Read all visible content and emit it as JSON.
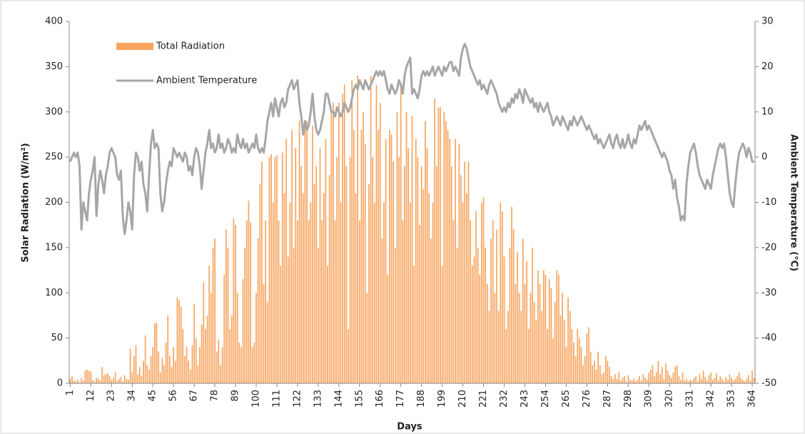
{
  "chart_data": {
    "type": "bar_line",
    "x_label": "Days",
    "y_label": "Solar Radiation (W/m²)",
    "y2_label": "Ambient Temperature (°C)",
    "ylim": [
      0,
      400
    ],
    "yticks": [
      0,
      50,
      100,
      150,
      200,
      250,
      300,
      350,
      400
    ],
    "y2lim": [
      -50,
      30
    ],
    "y2ticks": [
      -50,
      -40,
      -30,
      -20,
      -10,
      0,
      10,
      20,
      30
    ],
    "legend": "upper left",
    "categories": [
      "1",
      null,
      null,
      null,
      null,
      null,
      null,
      null,
      null,
      null,
      null,
      "12",
      null,
      null,
      null,
      null,
      null,
      null,
      null,
      null,
      null,
      null,
      "23",
      null,
      null,
      null,
      null,
      null,
      null,
      null,
      null,
      null,
      null,
      "34",
      null,
      null,
      null,
      null,
      null,
      null,
      null,
      null,
      null,
      null,
      "45",
      null,
      null,
      null,
      null,
      null,
      null,
      null,
      null,
      null,
      null,
      "56",
      null,
      null,
      null,
      null,
      null,
      null,
      null,
      null,
      null,
      null,
      "67",
      null,
      null,
      null,
      null,
      null,
      null,
      null,
      null,
      null,
      null,
      "78",
      null,
      null,
      null,
      null,
      null,
      null,
      null,
      null,
      null,
      null,
      "89",
      null,
      null,
      null,
      null,
      null,
      null,
      null,
      null,
      null,
      null,
      "100",
      null,
      null,
      null,
      null,
      null,
      null,
      null,
      null,
      null,
      null,
      "111",
      null,
      null,
      null,
      null,
      null,
      null,
      null,
      null,
      null,
      null,
      "122",
      null,
      null,
      null,
      null,
      null,
      null,
      null,
      null,
      null,
      null,
      "133",
      null,
      null,
      null,
      null,
      null,
      null,
      null,
      null,
      null,
      null,
      "144",
      null,
      null,
      null,
      null,
      null,
      null,
      null,
      null,
      null,
      null,
      "155",
      null,
      null,
      null,
      null,
      null,
      null,
      null,
      null,
      null,
      null,
      "166",
      null,
      null,
      null,
      null,
      null,
      null,
      null,
      null,
      null,
      null,
      "177",
      null,
      null,
      null,
      null,
      null,
      null,
      null,
      null,
      null,
      null,
      "188",
      null,
      null,
      null,
      null,
      null,
      null,
      null,
      null,
      null,
      null,
      "199",
      null,
      null,
      null,
      null,
      null,
      null,
      null,
      null,
      null,
      null,
      "210",
      null,
      null,
      null,
      null,
      null,
      null,
      null,
      null,
      null,
      null,
      "221",
      null,
      null,
      null,
      null,
      null,
      null,
      null,
      null,
      null,
      null,
      "232",
      null,
      null,
      null,
      null,
      null,
      null,
      null,
      null,
      null,
      null,
      "243",
      null,
      null,
      null,
      null,
      null,
      null,
      null,
      null,
      null,
      null,
      "254",
      null,
      null,
      null,
      null,
      null,
      null,
      null,
      null,
      null,
      null,
      "265",
      null,
      null,
      null,
      null,
      null,
      null,
      null,
      null,
      null,
      null,
      "276",
      null,
      null,
      null,
      null,
      null,
      null,
      null,
      null,
      null,
      null,
      "287",
      null,
      null,
      null,
      null,
      null,
      null,
      null,
      null,
      null,
      null,
      "298",
      null,
      null,
      null,
      null,
      null,
      null,
      null,
      null,
      null,
      null,
      "309",
      null,
      null,
      null,
      null,
      null,
      null,
      null,
      null,
      null,
      null,
      "320",
      null,
      null,
      null,
      null,
      null,
      null,
      null,
      null,
      null,
      null,
      "331",
      null,
      null,
      null,
      null,
      null,
      null,
      null,
      null,
      null,
      null,
      "342",
      null,
      null,
      null,
      null,
      null,
      null,
      null,
      null,
      null,
      null,
      "353",
      null,
      null,
      null,
      null,
      null,
      null,
      null,
      null,
      null,
      null,
      "364",
      null
    ],
    "series": [
      {
        "name": "Total Radiation",
        "type": "bar",
        "color": "#f7a35c",
        "values": [
          5,
          8,
          3,
          2,
          4,
          1,
          6,
          3,
          14,
          15,
          14,
          13,
          4,
          2,
          6,
          5,
          3,
          18,
          9,
          10,
          11,
          8,
          4,
          6,
          12,
          3,
          5,
          7,
          2,
          9,
          5,
          4,
          38,
          12,
          30,
          42,
          10,
          18,
          8,
          25,
          53,
          20,
          15,
          30,
          40,
          66,
          67,
          35,
          12,
          28,
          20,
          45,
          75,
          30,
          18,
          40,
          25,
          95,
          92,
          85,
          60,
          30,
          40,
          25,
          15,
          42,
          88,
          50,
          20,
          40,
          65,
          112,
          60,
          75,
          130,
          100,
          150,
          160,
          35,
          48,
          20,
          40,
          120,
          170,
          150,
          60,
          75,
          182,
          175,
          100,
          45,
          40,
          115,
          150,
          180,
          202,
          178,
          40,
          45,
          100,
          160,
          220,
          245,
          110,
          180,
          90,
          250,
          253,
          200,
          250,
          252,
          180,
          130,
          255,
          210,
          270,
          140,
          200,
          280,
          150,
          260,
          180,
          290,
          240,
          210,
          285,
          290,
          180,
          200,
          285,
          220,
          240,
          150,
          260,
          180,
          210,
          270,
          130,
          230,
          300,
          310,
          180,
          250,
          310,
          200,
          320,
          330,
          240,
          60,
          250,
          335,
          280,
          210,
          340,
          180,
          280,
          300,
          265,
          100,
          220,
          340,
          250,
          200,
          330,
          280,
          310,
          160,
          200,
          270,
          120,
          280,
          275,
          245,
          150,
          300,
          250,
          330,
          180,
          240,
          300,
          260,
          200,
          295,
          130,
          270,
          250,
          175,
          240,
          215,
          290,
          260,
          210,
          160,
          200,
          315,
          240,
          305,
          305,
          130,
          300,
          290,
          280,
          270,
          240,
          180,
          270,
          150,
          265,
          230,
          200,
          245,
          210,
          245,
          180,
          130,
          140,
          190,
          150,
          120,
          200,
          205,
          150,
          110,
          80,
          160,
          180,
          100,
          170,
          80,
          200,
          190,
          140,
          60,
          80,
          150,
          195,
          170,
          110,
          145,
          100,
          80,
          160,
          110,
          135,
          60,
          100,
          150,
          90,
          70,
          125,
          110,
          80,
          125,
          120,
          60,
          115,
          105,
          50,
          90,
          125,
          120,
          75,
          100,
          70,
          40,
          95,
          80,
          60,
          45,
          30,
          60,
          50,
          40,
          20,
          30,
          55,
          62,
          35,
          20,
          25,
          15,
          35,
          20,
          10,
          12,
          30,
          25,
          18,
          8,
          5,
          10,
          5,
          12,
          3,
          6,
          8,
          2,
          9,
          4,
          3,
          5,
          2,
          4,
          8,
          3,
          10,
          6,
          4,
          12,
          15,
          20,
          8,
          12,
          25,
          10,
          18,
          5,
          22,
          14,
          9,
          6,
          12,
          18,
          20,
          8,
          4,
          12,
          3,
          5,
          2,
          4,
          3,
          6,
          8,
          2,
          10,
          5,
          14,
          7,
          3,
          9,
          12,
          4,
          6,
          11,
          3,
          8,
          5,
          2,
          7,
          4,
          10,
          6,
          3,
          5,
          8,
          12,
          6,
          4,
          2,
          5,
          9,
          3,
          14,
          6
        ]
      },
      {
        "name": "Ambient Temperature",
        "type": "line",
        "axis": "y2",
        "color": "#a6a6a6",
        "values": [
          -1,
          0,
          1,
          0,
          1,
          -2,
          -16,
          -10,
          -12,
          -14,
          -8,
          -5,
          -3,
          0,
          -13,
          -6,
          -3,
          -5,
          -8,
          -4,
          -2,
          1,
          2,
          1,
          0,
          -4,
          -5,
          -3,
          -13,
          -17,
          -14,
          -10,
          -12,
          -16,
          -4,
          1,
          0,
          -3,
          -1,
          -6,
          -8,
          -12,
          -4,
          3,
          6,
          2,
          3,
          2,
          -8,
          -12,
          -10,
          -6,
          -3,
          -1,
          -2,
          2,
          1,
          0,
          1,
          0,
          -1,
          1,
          0,
          -3,
          -2,
          -4,
          0,
          2,
          1,
          -2,
          -7,
          -3,
          1,
          3,
          6,
          2,
          3,
          1,
          2,
          5,
          2,
          3,
          1,
          2,
          4,
          3,
          1,
          2,
          1,
          5,
          3,
          2,
          4,
          2,
          3,
          1,
          2,
          3,
          2,
          5,
          2,
          1,
          2,
          1,
          4,
          8,
          10,
          12,
          9,
          13,
          11,
          9,
          12,
          13,
          11,
          12,
          15,
          16,
          17,
          15,
          16,
          17,
          12,
          9,
          5,
          8,
          6,
          7,
          10,
          14,
          9,
          6,
          5,
          6,
          8,
          10,
          14,
          14,
          12,
          10,
          10,
          9,
          11,
          10,
          9,
          10,
          12,
          11,
          10,
          11,
          13,
          15,
          16,
          15,
          17,
          16,
          15,
          17,
          16,
          15,
          16,
          17,
          18,
          19,
          18,
          19,
          18,
          19,
          17,
          15,
          14,
          16,
          15,
          14,
          15,
          17,
          16,
          14,
          18,
          20,
          21,
          22,
          14,
          15,
          14,
          13,
          15,
          18,
          19,
          18,
          19,
          18,
          19,
          20,
          18,
          19,
          20,
          19,
          18,
          20,
          19,
          20,
          21,
          21,
          19,
          20,
          19,
          18,
          22,
          24,
          25,
          24,
          22,
          20,
          19,
          18,
          17,
          16,
          17,
          15,
          16,
          15,
          14,
          16,
          17,
          16,
          15,
          14,
          12,
          11,
          10,
          11,
          10,
          12,
          11,
          13,
          12,
          14,
          13,
          15,
          14,
          12,
          15,
          14,
          13,
          12,
          13,
          11,
          12,
          10,
          12,
          11,
          10,
          11,
          12,
          10,
          9,
          7,
          8,
          9,
          8,
          7,
          9,
          8,
          7,
          6,
          8,
          7,
          9,
          8,
          7,
          8,
          9,
          8,
          7,
          6,
          7,
          6,
          5,
          4,
          5,
          3,
          4,
          3,
          2,
          3,
          4,
          5,
          3,
          2,
          4,
          5,
          3,
          2,
          4,
          2,
          3,
          5,
          3,
          2,
          4,
          3,
          5,
          7,
          6,
          7,
          8,
          6,
          7,
          6,
          5,
          4,
          3,
          2,
          1,
          0,
          1,
          0,
          -1,
          -3,
          -4,
          -7,
          -5,
          -9,
          -11,
          -14,
          -13,
          -14,
          -6,
          -2,
          1,
          2,
          3,
          1,
          -2,
          -4,
          -5,
          -6,
          -7,
          -5,
          -6,
          -7,
          -4,
          -2,
          0,
          2,
          3,
          2,
          3,
          0,
          -4,
          -8,
          -10,
          -11,
          -6,
          -2,
          1,
          2,
          3,
          2,
          0,
          2,
          1,
          -1,
          -1
        ]
      }
    ]
  }
}
